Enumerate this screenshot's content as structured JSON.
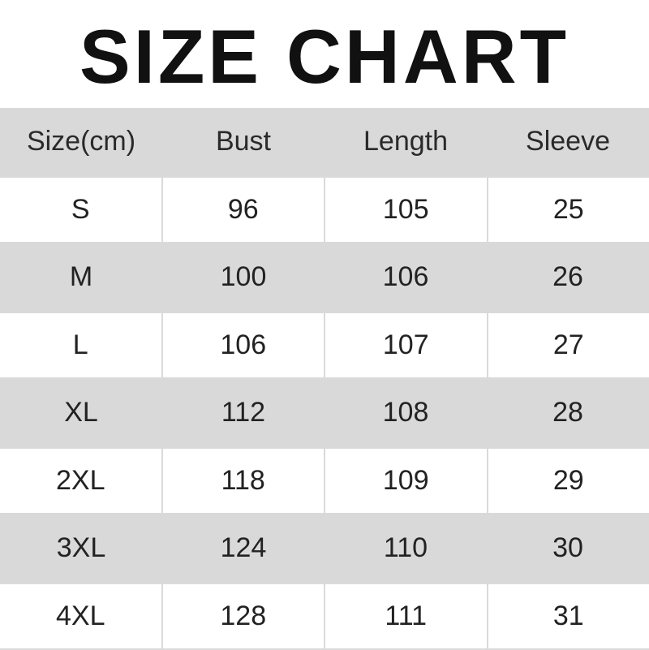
{
  "title": "SIZE CHART",
  "colors": {
    "stripe": "#d9d9d9",
    "border": "#dadada",
    "text": "#222222"
  },
  "table": {
    "headers": [
      "Size(cm)",
      "Bust",
      "Length",
      "Sleeve"
    ],
    "rows": [
      [
        "S",
        "96",
        "105",
        "25"
      ],
      [
        "M",
        "100",
        "106",
        "26"
      ],
      [
        "L",
        "106",
        "107",
        "27"
      ],
      [
        "XL",
        "112",
        "108",
        "28"
      ],
      [
        "2XL",
        "118",
        "109",
        "29"
      ],
      [
        "3XL",
        "124",
        "110",
        "30"
      ],
      [
        "4XL",
        "128",
        "111",
        "31"
      ]
    ]
  }
}
